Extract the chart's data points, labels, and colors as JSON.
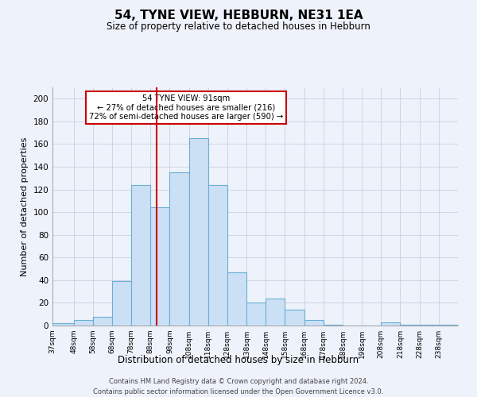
{
  "title": "54, TYNE VIEW, HEBBURN, NE31 1EA",
  "subtitle": "Size of property relative to detached houses in Hebburn",
  "xlabel": "Distribution of detached houses by size in Hebburn",
  "ylabel": "Number of detached properties",
  "bar_color": "#cce0f5",
  "bar_edge_color": "#6aaed6",
  "bins": [
    37,
    48,
    58,
    68,
    78,
    88,
    98,
    108,
    118,
    128,
    138,
    148,
    158,
    168,
    178,
    188,
    198,
    208,
    218,
    228,
    238,
    248
  ],
  "counts": [
    2,
    5,
    8,
    39,
    124,
    104,
    135,
    165,
    124,
    47,
    20,
    24,
    14,
    5,
    1,
    0,
    0,
    3,
    1,
    1,
    1
  ],
  "xlabels": [
    "37sqm",
    "48sqm",
    "58sqm",
    "68sqm",
    "78sqm",
    "88sqm",
    "98sqm",
    "108sqm",
    "118sqm",
    "128sqm",
    "138sqm",
    "148sqm",
    "158sqm",
    "168sqm",
    "178sqm",
    "188sqm",
    "198sqm",
    "208sqm",
    "218sqm",
    "228sqm",
    "238sqm"
  ],
  "vline_x": 91,
  "vline_color": "#cc0000",
  "annotation_line1": "54 TYNE VIEW: 91sqm",
  "annotation_line2": "← 27% of detached houses are smaller (216)",
  "annotation_line3": "72% of semi-detached houses are larger (590) →",
  "box_edge_color": "#cc0000",
  "ylim": [
    0,
    210
  ],
  "yticks": [
    0,
    20,
    40,
    60,
    80,
    100,
    120,
    140,
    160,
    180,
    200
  ],
  "footer1": "Contains HM Land Registry data © Crown copyright and database right 2024.",
  "footer2": "Contains public sector information licensed under the Open Government Licence v3.0.",
  "bg_color": "#eef2fa",
  "grid_color": "#c8d0e0"
}
